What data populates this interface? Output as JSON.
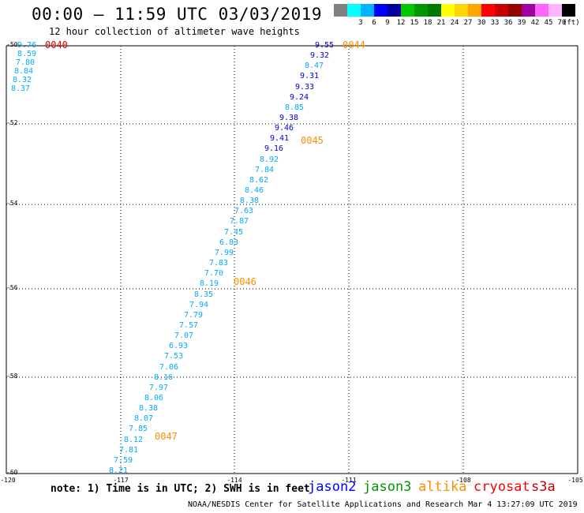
{
  "header": {
    "title": "00:00 – 11:59 UTC 03/03/2019",
    "subtitle": "12 hour collection of altimeter wave heights"
  },
  "color_scale": {
    "unit": "(ft)",
    "swatches": [
      {
        "color": "#808080",
        "label": ""
      },
      {
        "color": "#00ffff",
        "label": "3"
      },
      {
        "color": "#00b4ff",
        "label": "6"
      },
      {
        "color": "#0000ff",
        "label": "9"
      },
      {
        "color": "#0000a0",
        "label": "12"
      },
      {
        "color": "#00c800",
        "label": "15"
      },
      {
        "color": "#009600",
        "label": "18"
      },
      {
        "color": "#007800",
        "label": "21"
      },
      {
        "color": "#ffff00",
        "label": "24"
      },
      {
        "color": "#ffd700",
        "label": "27"
      },
      {
        "color": "#ffa500",
        "label": "30"
      },
      {
        "color": "#ff0000",
        "label": "33"
      },
      {
        "color": "#c80000",
        "label": "36"
      },
      {
        "color": "#960000",
        "label": "39"
      },
      {
        "color": "#a000a0",
        "label": "42"
      },
      {
        "color": "#ff64ff",
        "label": "45"
      },
      {
        "color": "#ffb4ff",
        "label": "70"
      },
      {
        "color": "#000000",
        "label": ""
      }
    ]
  },
  "map": {
    "lat_labels": [
      "-50",
      "-52",
      "-54",
      "-56",
      "-58",
      "-60"
    ],
    "lon_labels": [
      "-120",
      "-117",
      "-114",
      "-111",
      "-108",
      "-105"
    ],
    "colors": {
      "jason2": "#0000ff",
      "jason3": "#009600",
      "altika": "#ff8c00",
      "cryosat": "#ff0000",
      "s3a": "#c80000",
      "light_wave": "#00aaff",
      "dark_wave": "#0000cc",
      "time_orange": "#ff8c00",
      "time_red": "#e00000"
    }
  },
  "track_left": {
    "values": [
      "9.76",
      "8.59",
      "7.80",
      "8.84",
      "8.32",
      "8.37"
    ],
    "time": "0040"
  },
  "track_main": {
    "values": [
      "9.55",
      "9.32",
      "8.47",
      "9.31",
      "9.33",
      "9.24",
      "8.85",
      "9.38",
      "9.46",
      "9.41",
      "9.16",
      "8.92",
      "7.84",
      "8.62",
      "8.46",
      "8.38",
      "7.63",
      "7.87",
      "7.45",
      "6.83",
      "7.99",
      "7.83",
      "7.70",
      "8.19",
      "8.35",
      "7.94",
      "7.79",
      "7.57",
      "7.07",
      "6.93",
      "7.53",
      "7.06",
      "8.16",
      "7.97",
      "8.06",
      "8.38",
      "8.07",
      "7.85",
      "8.12",
      "7.81",
      "7.59",
      "8.21"
    ],
    "times": [
      "0044",
      "0045",
      "0046",
      "0047"
    ]
  },
  "footer": {
    "note": "note: 1) Time is in UTC; 2) SWH is in feet",
    "sats": [
      "jason2",
      "jason3",
      "altika",
      "cryosat",
      "s3a"
    ],
    "credit": "NOAA/NESDIS Center for Satellite Applications and Research    Mar  4 13:27:09 UTC 2019"
  }
}
